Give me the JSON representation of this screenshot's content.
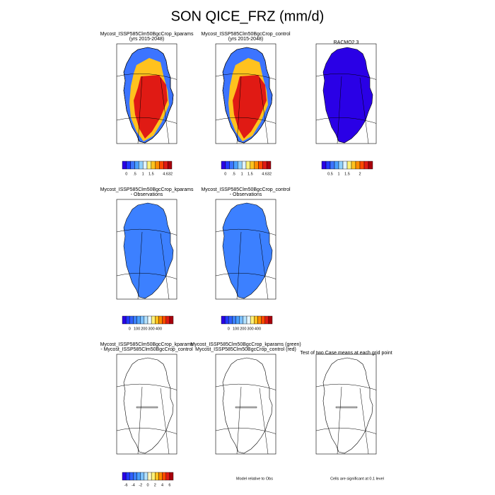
{
  "title": "SON QICE_FRZ (mm/d)",
  "panels": [
    {
      "title": [
        "Mycost_ISSP585Clm50BgcCrop_kparams",
        "(yrs 2015-2048)"
      ],
      "field": "model"
    },
    {
      "title": [
        "Mycost_ISSP585Clm50BgcCrop_control",
        "(yrs 2015-2048)"
      ],
      "field": "model"
    },
    {
      "title": [
        "RACMO2.3"
      ],
      "field": "obs"
    },
    {
      "title": [
        "Mycost_ISSP585Clm50BgcCrop_kparams",
        "- Observations"
      ],
      "field": "bias"
    },
    {
      "title": [
        "Mycost_ISSP585Clm50BgcCrop_control",
        "- Observations"
      ],
      "field": "bias"
    },
    {
      "title": [
        "Mycost_ISSP585Clm50BgcCrop_kparams",
        "- Mycost_ISSP585Clm50BgcCrop_control"
      ],
      "field": "none"
    },
    {
      "title": [
        "Mycost_ISSP585Clm50BgcCrop_kparams (green)",
        "Mycost_ISSP585Clm50BgcCrop_control (red)"
      ],
      "field": "none"
    },
    {
      "title": [
        "Test of two Case means at each grid point"
      ],
      "field": "none"
    }
  ],
  "colorbars": [
    {
      "labels": [
        "0",
        ".5",
        "1",
        "1.5",
        "4.632"
      ],
      "colors": [
        "#2a00e6",
        "#2238ff",
        "#3c74ff",
        "#4aa0ff",
        "#8fd0ff",
        "#e0f4ff",
        "#fff27a",
        "#ffc21e",
        "#ff8c00",
        "#ff4a00",
        "#e01a14",
        "#a8000c"
      ]
    },
    {
      "labels": [
        "0",
        ".5",
        "1",
        "1.5",
        "4.632"
      ],
      "colors": [
        "#2a00e6",
        "#2238ff",
        "#3c74ff",
        "#4aa0ff",
        "#8fd0ff",
        "#e0f4ff",
        "#fff27a",
        "#ffc21e",
        "#ff8c00",
        "#ff4a00",
        "#e01a14",
        "#a8000c"
      ]
    },
    {
      "labels": [
        "0.5",
        "1",
        "1.5",
        "2"
      ],
      "colors": [
        "#2a00e6",
        "#2238ff",
        "#3c74ff",
        "#4aa0ff",
        "#8fd0ff",
        "#e0f4ff",
        "#fff27a",
        "#ffc21e",
        "#ff8c00",
        "#ff4a00",
        "#e01a14",
        "#a8000c"
      ]
    },
    {
      "labels": [
        "0",
        "100",
        "200",
        "300",
        "400"
      ],
      "colors": [
        "#2a00e6",
        "#2238ff",
        "#3060ff",
        "#3c80ff",
        "#4aa0ff",
        "#7cc0ff",
        "#b4e2ff",
        "#e8f8ff",
        "#fff27a",
        "#ffc21e",
        "#ff8c00",
        "#ff4a00",
        "#e01a14",
        "#a8000c"
      ]
    },
    {
      "labels": [
        "0",
        "100",
        "200",
        "300",
        "400"
      ],
      "colors": [
        "#2a00e6",
        "#2238ff",
        "#3060ff",
        "#3c80ff",
        "#4aa0ff",
        "#7cc0ff",
        "#b4e2ff",
        "#e8f8ff",
        "#fff27a",
        "#ffc21e",
        "#ff8c00",
        "#ff4a00",
        "#e01a14",
        "#a8000c"
      ]
    },
    {
      "labels": [
        "-6",
        "-4",
        "-2",
        "0",
        "2",
        "4",
        "6"
      ],
      "colors": [
        "#2a00e6",
        "#2238ff",
        "#3060ff",
        "#3c80ff",
        "#4aa0ff",
        "#7cc0ff",
        "#b4e2ff",
        "#fff6c0",
        "#fff27a",
        "#ffc21e",
        "#ff8c00",
        "#ff4a00",
        "#e01a14",
        "#a8000c"
      ]
    }
  ],
  "footnotes": [
    "Model relative to Obs",
    "Cells are significant at 0.1 level"
  ]
}
